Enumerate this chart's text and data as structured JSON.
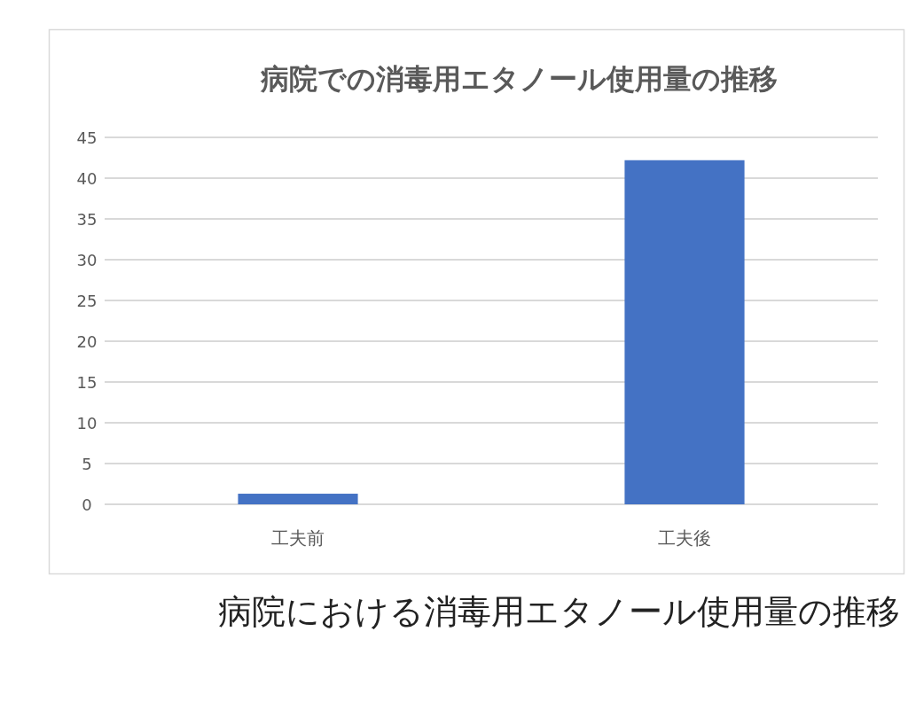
{
  "chart_data": {
    "type": "bar",
    "title": "病院での消毒用エタノール使用量の推移",
    "categories": [
      "工夫前",
      "工夫後"
    ],
    "values": [
      1.3,
      42.2
    ],
    "color": "#4472c4",
    "ylim": [
      0,
      45
    ],
    "yticks": [
      0,
      5,
      10,
      15,
      20,
      25,
      30,
      35,
      40,
      45
    ],
    "grid": "y",
    "annotations": [
      "病院における消毒用エタノール使用量の推移"
    ]
  }
}
